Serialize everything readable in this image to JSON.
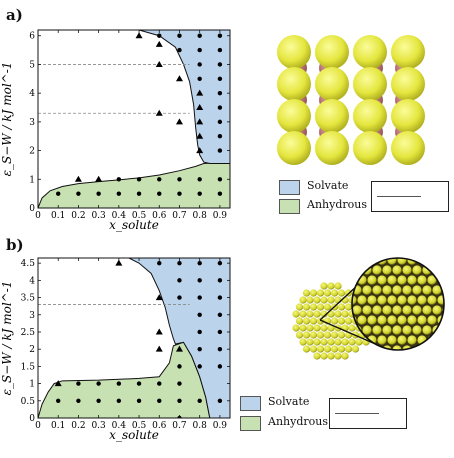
{
  "figure": {
    "panel_a_label": "a)",
    "panel_b_label": "b)"
  },
  "legend": {
    "solvate": "Solvate",
    "anhydrous": "Anhydrous"
  },
  "colors": {
    "solvate_region": "#bcd3ec",
    "anhydrous_region": "#c8e1b2",
    "sphere_large": "#e6e84a",
    "sphere_small": "#c07a7a"
  },
  "chart_data": [
    {
      "type": "scatter",
      "panel": "a",
      "xlabel": "x_solute",
      "ylabel": "ε_S−W / kJ mol^-1",
      "xlim": [
        0,
        0.95
      ],
      "ylim": [
        0,
        6.2
      ],
      "xticks": [
        "0",
        "0.1",
        "0.2",
        "0.3",
        "0.4",
        "0.5",
        "0.6",
        "0.7",
        "0.8",
        "0.9"
      ],
      "yticks": [
        "0",
        "1",
        "2",
        "3",
        "4",
        "5",
        "6"
      ],
      "dashed_levels": [
        5.0,
        3.3
      ],
      "regions": {
        "anhydrous_boundary": [
          [
            0,
            0
          ],
          [
            0.02,
            0.35
          ],
          [
            0.06,
            0.6
          ],
          [
            0.12,
            0.75
          ],
          [
            0.2,
            0.85
          ],
          [
            0.3,
            0.92
          ],
          [
            0.4,
            0.98
          ],
          [
            0.5,
            1.05
          ],
          [
            0.6,
            1.15
          ],
          [
            0.7,
            1.3
          ],
          [
            0.78,
            1.45
          ],
          [
            0.82,
            1.55
          ],
          [
            0.95,
            1.6
          ]
        ],
        "solvate_boundary": [
          [
            0.5,
            6.2
          ],
          [
            0.6,
            6.0
          ],
          [
            0.68,
            5.6
          ],
          [
            0.72,
            5.0
          ],
          [
            0.75,
            4.4
          ],
          [
            0.77,
            3.6
          ],
          [
            0.78,
            2.8
          ],
          [
            0.79,
            2.2
          ],
          [
            0.8,
            1.85
          ],
          [
            0.82,
            1.6
          ],
          [
            0.85,
            1.55
          ],
          [
            0.95,
            1.55
          ]
        ]
      },
      "series": [
        {
          "marker": "triangle",
          "points": [
            [
              0.5,
              6.0
            ],
            [
              0.6,
              5.7
            ],
            [
              0.6,
              5.0
            ],
            [
              0.7,
              4.5
            ],
            [
              0.8,
              4.0
            ],
            [
              0.8,
              3.5
            ],
            [
              0.6,
              3.3
            ],
            [
              0.7,
              3.0
            ],
            [
              0.8,
              3.0
            ],
            [
              0.8,
              2.5
            ],
            [
              0.8,
              2.0
            ],
            [
              0.2,
              1.0
            ],
            [
              0.3,
              1.0
            ]
          ]
        },
        {
          "marker": "dot",
          "points": [
            [
              0.6,
              6.0
            ],
            [
              0.7,
              6.0
            ],
            [
              0.8,
              6.0
            ],
            [
              0.9,
              6.0
            ],
            [
              0.7,
              5.5
            ],
            [
              0.8,
              5.5
            ],
            [
              0.9,
              5.5
            ],
            [
              0.8,
              5.0
            ],
            [
              0.9,
              5.0
            ],
            [
              0.8,
              4.5
            ],
            [
              0.9,
              4.5
            ],
            [
              0.9,
              4.0
            ],
            [
              0.9,
              3.5
            ],
            [
              0.9,
              3.0
            ],
            [
              0.9,
              2.5
            ],
            [
              0.9,
              2.0
            ],
            [
              0.4,
              1.0
            ],
            [
              0.5,
              1.0
            ],
            [
              0.6,
              1.0
            ],
            [
              0.7,
              1.0
            ],
            [
              0.8,
              1.0
            ],
            [
              0.9,
              1.0
            ],
            [
              0.1,
              0.5
            ],
            [
              0.2,
              0.5
            ],
            [
              0.3,
              0.5
            ],
            [
              0.4,
              0.5
            ],
            [
              0.5,
              0.5
            ],
            [
              0.6,
              0.5
            ],
            [
              0.7,
              0.5
            ],
            [
              0.8,
              0.5
            ],
            [
              0.9,
              0.5
            ]
          ]
        }
      ]
    },
    {
      "type": "scatter",
      "panel": "b",
      "xlabel": "x_solute",
      "ylabel": "ε_S−W / kJ mol^-1",
      "xlim": [
        0,
        0.95
      ],
      "ylim": [
        0,
        4.65
      ],
      "xticks": [
        "0",
        "0.1",
        "0.2",
        "0.3",
        "0.4",
        "0.5",
        "0.6",
        "0.7",
        "0.8",
        "0.9"
      ],
      "yticks": [
        "0",
        "0.5",
        "1",
        "1.5",
        "2",
        "2.5",
        "3",
        "3.5",
        "4",
        "4.5"
      ],
      "dashed_levels": [
        3.3
      ],
      "regions": {
        "anhydrous_boundary": [
          [
            0,
            0
          ],
          [
            0.02,
            0.4
          ],
          [
            0.05,
            0.75
          ],
          [
            0.08,
            1.0
          ],
          [
            0.12,
            1.08
          ],
          [
            0.3,
            1.1
          ],
          [
            0.5,
            1.15
          ],
          [
            0.6,
            1.2
          ],
          [
            0.65,
            1.6
          ],
          [
            0.67,
            2.1
          ],
          [
            0.72,
            2.2
          ],
          [
            0.76,
            1.8
          ],
          [
            0.8,
            1.2
          ],
          [
            0.83,
            0.6
          ],
          [
            0.85,
            0
          ]
        ],
        "solvate_boundary": [
          [
            0.45,
            4.65
          ],
          [
            0.5,
            4.5
          ],
          [
            0.56,
            4.2
          ],
          [
            0.6,
            3.7
          ],
          [
            0.63,
            3.2
          ],
          [
            0.65,
            2.7
          ],
          [
            0.67,
            2.3
          ],
          [
            0.68,
            2.15
          ]
        ]
      },
      "series": [
        {
          "marker": "triangle",
          "points": [
            [
              0.4,
              4.5
            ],
            [
              0.6,
              3.5
            ],
            [
              0.6,
              2.5
            ],
            [
              0.6,
              2.0
            ],
            [
              0.7,
              2.0
            ],
            [
              0.1,
              1.0
            ]
          ]
        },
        {
          "marker": "dot",
          "points": [
            [
              0.6,
              4.5
            ],
            [
              0.7,
              4.5
            ],
            [
              0.8,
              4.5
            ],
            [
              0.9,
              4.5
            ],
            [
              0.7,
              4.0
            ],
            [
              0.8,
              4.0
            ],
            [
              0.9,
              4.0
            ],
            [
              0.7,
              3.5
            ],
            [
              0.8,
              3.5
            ],
            [
              0.9,
              3.5
            ],
            [
              0.8,
              3.0
            ],
            [
              0.9,
              3.0
            ],
            [
              0.8,
              2.5
            ],
            [
              0.9,
              2.5
            ],
            [
              0.8,
              2.0
            ],
            [
              0.9,
              2.0
            ],
            [
              0.8,
              1.5
            ],
            [
              0.9,
              1.5
            ],
            [
              0.2,
              1.0
            ],
            [
              0.3,
              1.0
            ],
            [
              0.4,
              1.0
            ],
            [
              0.5,
              1.0
            ],
            [
              0.6,
              1.0
            ],
            [
              0.7,
              1.0
            ],
            [
              0.7,
              1.5
            ],
            [
              0.1,
              0.5
            ],
            [
              0.2,
              0.5
            ],
            [
              0.3,
              0.5
            ],
            [
              0.4,
              0.5
            ],
            [
              0.5,
              0.5
            ],
            [
              0.6,
              0.5
            ],
            [
              0.7,
              0.5
            ],
            [
              0.8,
              0.5
            ],
            [
              0.9,
              0.5
            ],
            [
              0.7,
              0.0
            ]
          ]
        }
      ]
    }
  ]
}
